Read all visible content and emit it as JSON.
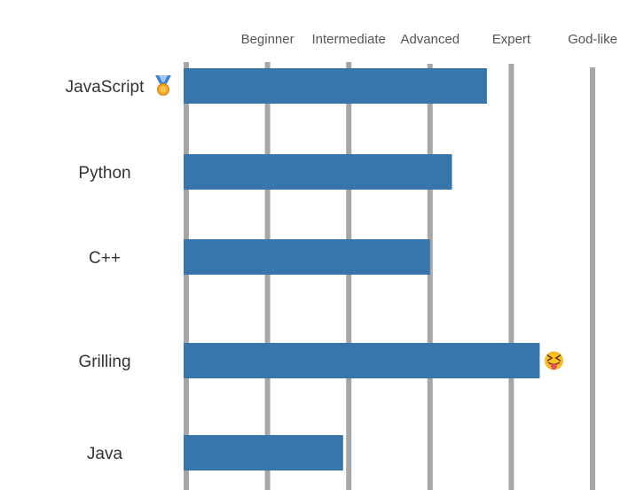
{
  "chart_data": {
    "type": "bar",
    "orientation": "horizontal",
    "title": "",
    "xlabel": "",
    "ylabel": "",
    "x_ticks": [
      "Beginner",
      "Intermediate",
      "Advanced",
      "Expert",
      "God-like"
    ],
    "x_tick_values": [
      1,
      2,
      3,
      4,
      5
    ],
    "xlim": [
      0,
      5
    ],
    "categories": [
      "JavaScript",
      "Python",
      "C++",
      "Grilling",
      "Java"
    ],
    "values": [
      3.7,
      3.27,
      3.0,
      4.35,
      1.93
    ],
    "bar_color": "#3776ab",
    "grid": "vertical",
    "annotations": [
      {
        "category": "JavaScript",
        "icon": "medal-icon",
        "position": "after-label"
      },
      {
        "category": "Grilling",
        "icon": "tongue-out-emoji-icon",
        "position": "after-bar"
      }
    ]
  }
}
